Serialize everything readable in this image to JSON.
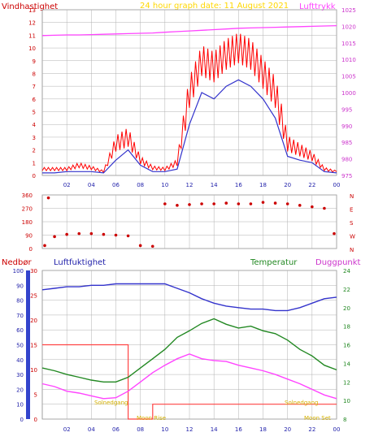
{
  "header": {
    "left": "Vindhastighet",
    "center": "24 hour graph date:  11 August 2021",
    "right": "Lufttrykk"
  },
  "bottom_labels": {
    "nedbor": "Nedbør",
    "luftfuktighet": "Luftfuktighet",
    "temperatur": "Temperatur",
    "duggpunkt": "Duggpunkt"
  },
  "annotations": {
    "solnedgang_left": "Solnedgang",
    "moon_rise": "Moon Rise",
    "solnedgang_right": "Solnedgang",
    "moon_set": "Moon Set"
  },
  "colors": {
    "wind": "#ff0000",
    "wind_avg": "#3333cc",
    "pressure": "#ff44ff",
    "direction": "#cc0000",
    "humidity": "#3333cc",
    "temperature": "#228822",
    "dewpoint": "#ff44ff",
    "rain": "#ff4444",
    "annotation": "#ffd700",
    "grid": "#b0b0b0"
  },
  "chart_data": [
    {
      "type": "line",
      "name": "wind_pressure",
      "x_ticks": [
        "02",
        "04",
        "06",
        "08",
        "10",
        "12",
        "14",
        "16",
        "18",
        "20",
        "22",
        "00"
      ],
      "y_left_ticks": [
        "0",
        "1",
        "2",
        "3",
        "4",
        "5",
        "6",
        "7",
        "8",
        "9",
        "10",
        "11",
        "12",
        "13"
      ],
      "y_right_ticks": [
        "975",
        "980",
        "985",
        "990",
        "995",
        "1000",
        "1005",
        "1010",
        "1015",
        "1020",
        "1025"
      ],
      "ylim_left": [
        0,
        13
      ],
      "ylim_right": [
        975,
        1025
      ],
      "x_hours": [
        0,
        1,
        2,
        3,
        4,
        5,
        6,
        7,
        8,
        9,
        10,
        11,
        12,
        13,
        14,
        15,
        16,
        17,
        18,
        19,
        20,
        21,
        22,
        23,
        24
      ],
      "pressure": [
        1017.2,
        1017.3,
        1017.4,
        1017.4,
        1017.5,
        1017.6,
        1017.7,
        1017.8,
        1017.9,
        1018.0,
        1018.2,
        1018.4,
        1018.6,
        1018.8,
        1019.0,
        1019.2,
        1019.4,
        1019.5,
        1019.6,
        1019.7,
        1019.8,
        1019.9,
        1020.0,
        1020.1,
        1020.2
      ],
      "wind_gust": [
        0.5,
        0.5,
        0.5,
        0.8,
        0.6,
        0.3,
        2.5,
        3.0,
        1.2,
        0.6,
        0.5,
        1.0,
        6.5,
        9.0,
        8.5,
        9.5,
        10.0,
        9.5,
        8.0,
        6.5,
        2.5,
        2.0,
        1.5,
        0.5,
        0.3
      ],
      "wind_avg": [
        0.2,
        0.2,
        0.3,
        0.3,
        0.3,
        0.2,
        1.2,
        2.0,
        0.8,
        0.3,
        0.3,
        0.5,
        4.0,
        6.5,
        6.0,
        7.0,
        7.5,
        7.0,
        6.0,
        4.5,
        1.5,
        1.2,
        1.0,
        0.3,
        0.2
      ]
    },
    {
      "type": "scatter",
      "name": "wind_direction",
      "y_ticks": [
        "0",
        "90",
        "180",
        "270",
        "360"
      ],
      "y_right_labels": [
        "N",
        "W",
        "S",
        "E",
        "N"
      ],
      "ylim": [
        0,
        360
      ],
      "x_hours": [
        0.2,
        0.5,
        1,
        2,
        3,
        4,
        5,
        6,
        7,
        8,
        9,
        10,
        11,
        12,
        13,
        14,
        15,
        16,
        17,
        18,
        19,
        20,
        21,
        22,
        23,
        23.8
      ],
      "degrees": [
        20,
        340,
        80,
        95,
        100,
        100,
        95,
        90,
        85,
        20,
        15,
        300,
        290,
        295,
        300,
        300,
        305,
        300,
        300,
        310,
        305,
        300,
        290,
        280,
        270,
        100
      ]
    },
    {
      "type": "line",
      "name": "humidity_temperature",
      "y_left_ticks": [
        "0",
        "10",
        "20",
        "30",
        "40",
        "50",
        "60",
        "70",
        "80",
        "90",
        "100"
      ],
      "y_rain_ticks": [
        "0",
        "5",
        "10",
        "15",
        "20",
        "25",
        "30"
      ],
      "y_right_ticks": [
        "8",
        "10",
        "12",
        "14",
        "16",
        "18",
        "20",
        "22",
        "24"
      ],
      "ylim_left": [
        0,
        100
      ],
      "ylim_right": [
        8,
        24
      ],
      "x_hours": [
        0,
        1,
        2,
        3,
        4,
        5,
        6,
        7,
        8,
        9,
        10,
        11,
        12,
        13,
        14,
        15,
        16,
        17,
        18,
        19,
        20,
        21,
        22,
        23,
        24
      ],
      "humidity": [
        87,
        88,
        89,
        89,
        90,
        90,
        91,
        91,
        91,
        91,
        91,
        88,
        85,
        81,
        78,
        76,
        75,
        74,
        74,
        73,
        73,
        75,
        78,
        81,
        82
      ],
      "temperature": [
        13.5,
        13.2,
        12.8,
        12.5,
        12.2,
        12.0,
        12.0,
        12.5,
        13.5,
        14.5,
        15.5,
        16.8,
        17.5,
        18.3,
        18.8,
        18.2,
        17.8,
        18.0,
        17.5,
        17.2,
        16.5,
        15.5,
        14.8,
        13.8,
        13.3
      ],
      "dewpoint": [
        11.8,
        11.5,
        11.0,
        10.8,
        10.5,
        10.2,
        10.3,
        11.0,
        12.0,
        13.0,
        13.8,
        14.5,
        15.0,
        14.5,
        14.3,
        14.2,
        13.8,
        13.5,
        13.2,
        12.8,
        12.3,
        11.8,
        11.2,
        10.6,
        10.2
      ],
      "rain": [
        15,
        15,
        15,
        15,
        15,
        15,
        15,
        0,
        0,
        3,
        3,
        3,
        3,
        3,
        3,
        3,
        3,
        3,
        3,
        3,
        3,
        3,
        3,
        3,
        3
      ]
    }
  ]
}
